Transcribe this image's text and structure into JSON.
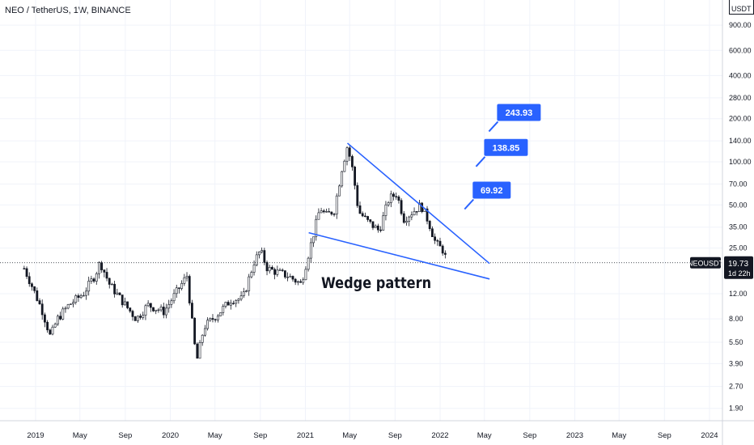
{
  "chart_data": {
    "type": "candlestick",
    "title": "NEO / TetherUS, 1W, BINANCE",
    "currency_label": "USDT",
    "y_scale": "log",
    "y_ticks": [
      "900.00",
      "600.00",
      "400.00",
      "280.00",
      "200.00",
      "140.00",
      "100.00",
      "70.00",
      "50.00",
      "35.00",
      "25.00",
      "12.00",
      "8.00",
      "5.50",
      "3.90",
      "2.70",
      "1.90"
    ],
    "x_ticks": [
      "2019",
      "May",
      "Sep",
      "2020",
      "May",
      "Sep",
      "2021",
      "May",
      "Sep",
      "2022",
      "May",
      "Sep",
      "2023",
      "May",
      "Sep",
      "2024"
    ],
    "price_path": [
      [
        "2018-12-01",
        18
      ],
      [
        "2018-12-20",
        14
      ],
      [
        "2019-01-20",
        9
      ],
      [
        "2019-02-10",
        6
      ],
      [
        "2019-03-01",
        8
      ],
      [
        "2019-04-01",
        10
      ],
      [
        "2019-05-10",
        12
      ],
      [
        "2019-06-10",
        16
      ],
      [
        "2019-06-25",
        20
      ],
      [
        "2019-07-20",
        14
      ],
      [
        "2019-09-01",
        10
      ],
      [
        "2019-10-01",
        8
      ],
      [
        "2019-11-01",
        10
      ],
      [
        "2019-12-15",
        9
      ],
      [
        "2020-01-15",
        12
      ],
      [
        "2020-02-15",
        16
      ],
      [
        "2020-03-12",
        4
      ],
      [
        "2020-04-01",
        7
      ],
      [
        "2020-05-15",
        9
      ],
      [
        "2020-06-15",
        11
      ],
      [
        "2020-07-15",
        11
      ],
      [
        "2020-08-15",
        20
      ],
      [
        "2020-09-01",
        24
      ],
      [
        "2020-09-20",
        18
      ],
      [
        "2020-10-15",
        17
      ],
      [
        "2020-11-15",
        16
      ],
      [
        "2020-12-20",
        14
      ],
      [
        "2021-01-15",
        26
      ],
      [
        "2021-02-10",
        48
      ],
      [
        "2021-02-25",
        42
      ],
      [
        "2021-03-20",
        46
      ],
      [
        "2021-04-10",
        90
      ],
      [
        "2021-04-25",
        130
      ],
      [
        "2021-05-10",
        85
      ],
      [
        "2021-05-25",
        45
      ],
      [
        "2021-06-20",
        38
      ],
      [
        "2021-07-20",
        33
      ],
      [
        "2021-08-15",
        55
      ],
      [
        "2021-09-05",
        60
      ],
      [
        "2021-09-25",
        40
      ],
      [
        "2021-10-20",
        45
      ],
      [
        "2021-11-10",
        50
      ],
      [
        "2021-12-01",
        38
      ],
      [
        "2021-12-20",
        27
      ],
      [
        "2022-01-10",
        24
      ],
      [
        "2022-01-20",
        19.73
      ]
    ],
    "wedge": {
      "upper": [
        [
          "2021-04-25",
          135
        ],
        [
          "2022-05-15",
          19.5
        ]
      ],
      "lower": [
        [
          "2021-01-10",
          32
        ],
        [
          "2022-05-15",
          15.2
        ]
      ]
    },
    "annotation": "Wedge pattern",
    "targets": [
      {
        "label": "69.92",
        "date": "2022-03-15",
        "value": 69.92
      },
      {
        "label": "138.85",
        "date": "2022-04-15",
        "value": 138.85
      },
      {
        "label": "243.93",
        "date": "2022-05-20",
        "value": 243.93
      }
    ],
    "last_price": {
      "symbol": "NEOUSDT",
      "value": "19.73",
      "countdown": "1d 22h"
    },
    "colors": {
      "up": "#26a69a",
      "down": "#131722",
      "candle": "#131722",
      "trendline": "#2962ff",
      "label_bg": "#2962ff",
      "grid": "#f0f3fa"
    }
  }
}
